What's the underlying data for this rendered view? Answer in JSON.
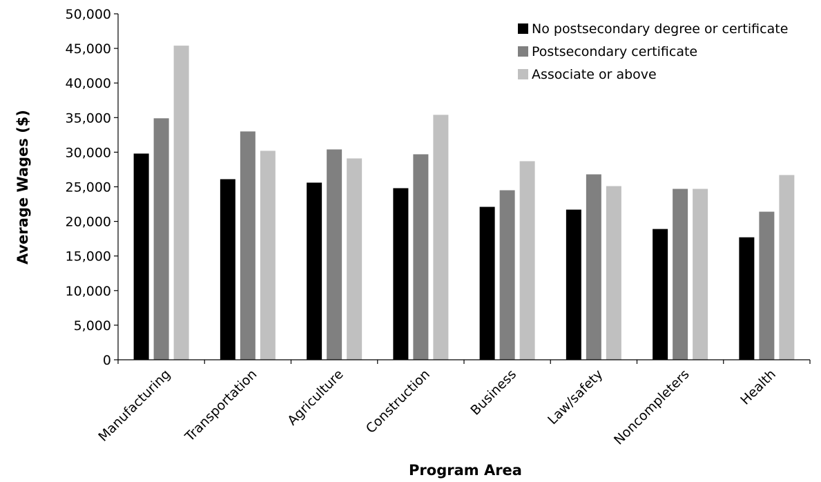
{
  "chart_data": {
    "type": "bar",
    "title": "",
    "xlabel": "Program Area",
    "ylabel": "Average Wages ($)",
    "ylim": [
      0,
      50000
    ],
    "ytick_step": 5000,
    "ytick_labels": [
      "0",
      "5,000",
      "10,000",
      "15,000",
      "20,000",
      "25,000",
      "30,000",
      "35,000",
      "40,000",
      "45,000",
      "50,000"
    ],
    "grid": false,
    "legend_position": "top-right",
    "categories": [
      "Manufacturing",
      "Transportation",
      "Agriculture",
      "Construction",
      "Business",
      "Law/safety",
      "Noncompleters",
      "Health"
    ],
    "series": [
      {
        "name": "No postsecondary degree or certificate",
        "color": "#000000",
        "values": [
          29800,
          26100,
          25600,
          24800,
          22100,
          21700,
          18900,
          17700
        ]
      },
      {
        "name": "Postsecondary certificate",
        "color": "#808080",
        "values": [
          34900,
          33000,
          30400,
          29700,
          24500,
          26800,
          24700,
          21400
        ]
      },
      {
        "name": "Associate or above",
        "color": "#c0c0c0",
        "values": [
          45400,
          30200,
          29100,
          35400,
          28700,
          25100,
          24700,
          26700
        ]
      }
    ]
  }
}
